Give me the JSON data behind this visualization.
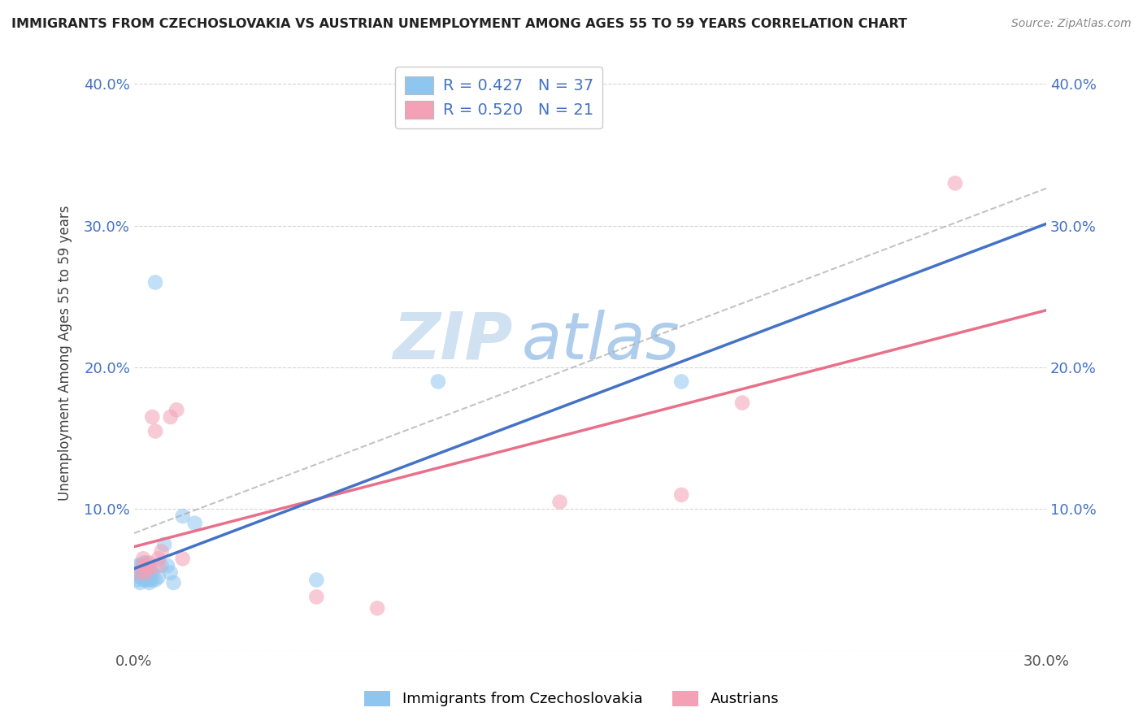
{
  "title": "IMMIGRANTS FROM CZECHOSLOVAKIA VS AUSTRIAN UNEMPLOYMENT AMONG AGES 55 TO 59 YEARS CORRELATION CHART",
  "source": "Source: ZipAtlas.com",
  "ylabel": "Unemployment Among Ages 55 to 59 years",
  "xlim": [
    0.0,
    0.3
  ],
  "ylim": [
    0.0,
    0.42
  ],
  "x_ticks": [
    0.0,
    0.05,
    0.1,
    0.15,
    0.2,
    0.25,
    0.3
  ],
  "x_tick_labels": [
    "0.0%",
    "",
    "",
    "",
    "",
    "",
    "30.0%"
  ],
  "y_ticks": [
    0.0,
    0.1,
    0.2,
    0.3,
    0.4
  ],
  "y_tick_labels": [
    "",
    "10.0%",
    "20.0%",
    "30.0%",
    "40.0%"
  ],
  "color_blue": "#8EC6F0",
  "color_pink": "#F4A0B5",
  "color_line_blue": "#4472C4",
  "color_line_pink": "#E8708A",
  "color_line_gray": "#AAAAAA",
  "watermark_zip": "ZIP",
  "watermark_atlas": "atlas",
  "bottom_legend_label1": "Immigrants from Czechoslovakia",
  "bottom_legend_label2": "Austrians",
  "blue_scatter_x": [
    0.001,
    0.001,
    0.001,
    0.002,
    0.002,
    0.002,
    0.002,
    0.003,
    0.003,
    0.003,
    0.003,
    0.003,
    0.004,
    0.004,
    0.004,
    0.004,
    0.004,
    0.005,
    0.005,
    0.005,
    0.005,
    0.005,
    0.006,
    0.006,
    0.007,
    0.007,
    0.008,
    0.009,
    0.01,
    0.011,
    0.013,
    0.016,
    0.02,
    0.06,
    0.1,
    0.18,
    0.012
  ],
  "blue_scatter_y": [
    0.05,
    0.055,
    0.06,
    0.048,
    0.052,
    0.055,
    0.06,
    0.05,
    0.053,
    0.055,
    0.058,
    0.062,
    0.05,
    0.053,
    0.055,
    0.058,
    0.062,
    0.048,
    0.05,
    0.052,
    0.055,
    0.058,
    0.05,
    0.055,
    0.05,
    0.26,
    0.052,
    0.06,
    0.075,
    0.06,
    0.048,
    0.095,
    0.09,
    0.05,
    0.19,
    0.19,
    0.055
  ],
  "pink_scatter_x": [
    0.002,
    0.003,
    0.003,
    0.004,
    0.004,
    0.005,
    0.005,
    0.006,
    0.007,
    0.008,
    0.008,
    0.009,
    0.012,
    0.014,
    0.016,
    0.06,
    0.08,
    0.14,
    0.2,
    0.27,
    0.18
  ],
  "pink_scatter_y": [
    0.055,
    0.06,
    0.065,
    0.055,
    0.06,
    0.058,
    0.062,
    0.165,
    0.155,
    0.06,
    0.065,
    0.07,
    0.165,
    0.17,
    0.065,
    0.038,
    0.03,
    0.105,
    0.175,
    0.33,
    0.11
  ]
}
